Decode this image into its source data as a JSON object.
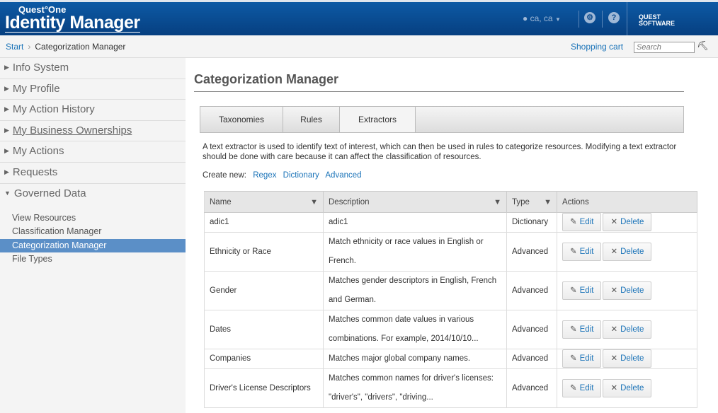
{
  "header": {
    "logo_top": "Quest°One",
    "logo_main": "Identity Manager",
    "user": "ca, ca",
    "brand": [
      "QUEST",
      "SOFTWARE"
    ]
  },
  "breadcrumb": {
    "start": "Start",
    "current": "Categorization Manager",
    "shopping_cart": "Shopping cart",
    "search_placeholder": "Search"
  },
  "sidebar": {
    "items": [
      "Info System",
      "My Profile",
      "My Action History",
      "My Business Ownerships",
      "My Actions",
      "Requests",
      "Governed Data"
    ],
    "subitems": [
      "View Resources",
      "Classification Manager",
      "Categorization Manager",
      "File Types"
    ]
  },
  "main": {
    "title": "Categorization Manager",
    "tabs": [
      "Taxonomies",
      "Rules",
      "Extractors"
    ],
    "description": "A text extractor is used to identify text of interest, which can then be used in rules to categorize resources. Modifying a text extractor should be done with care because it can affect the classification of resources.",
    "create_new": "Create new:",
    "create_links": [
      "Regex",
      "Dictionary",
      "Advanced"
    ],
    "columns": [
      "Name",
      "Description",
      "Type",
      "Actions"
    ],
    "edit": "Edit",
    "delete": "Delete",
    "rows": [
      {
        "name": "adic1",
        "description": "adic1",
        "type": "Dictionary"
      },
      {
        "name": "Ethnicity or Race",
        "description": "Match ethnicity or race values in English or French.",
        "type": "Advanced"
      },
      {
        "name": "Gender",
        "description": "Matches gender descriptors in English, French and German.",
        "type": "Advanced"
      },
      {
        "name": "Dates",
        "description": "Matches common date values in various combinations. For example, 2014/10/10...",
        "type": "Advanced"
      },
      {
        "name": "Companies",
        "description": "Matches major global company names.",
        "type": "Advanced"
      },
      {
        "name": "Driver's License Descriptors",
        "description": "Matches common names for driver's licenses: \"driver's\", \"drivers\", \"driving...",
        "type": "Advanced"
      }
    ]
  }
}
